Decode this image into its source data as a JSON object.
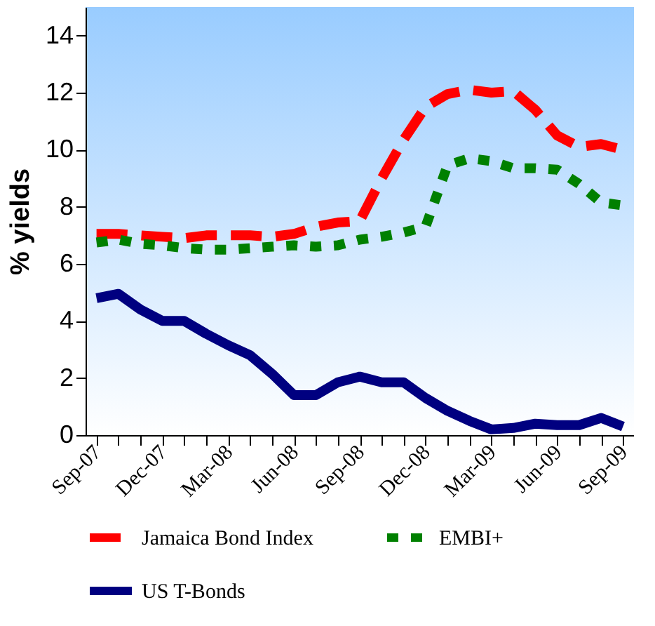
{
  "chart_data": {
    "type": "line",
    "ylabel": "% yields",
    "categories": [
      "Sep-07",
      null,
      null,
      "Dec-07",
      null,
      null,
      "Mar-08",
      null,
      null,
      "Jun-08",
      null,
      null,
      "Sep-08",
      null,
      null,
      "Dec-08",
      null,
      null,
      "Mar-09",
      null,
      null,
      "Jun-09",
      null,
      null,
      "Sep-09"
    ],
    "series": [
      {
        "name": "Jamaica Bond Index",
        "color": "#ff0000",
        "line_style": "dashed",
        "values": [
          7.05,
          7.05,
          7.0,
          6.95,
          6.9,
          7.0,
          7.0,
          7.0,
          6.95,
          7.05,
          7.3,
          7.45,
          7.5,
          9.0,
          10.35,
          11.5,
          11.95,
          12.1,
          12.0,
          12.05,
          11.4,
          10.5,
          10.1,
          10.2,
          10.0
        ]
      },
      {
        "name": "EMBI+",
        "color": "#008000",
        "line_style": "dotted",
        "values": [
          6.75,
          6.85,
          6.7,
          6.65,
          6.55,
          6.5,
          6.5,
          6.55,
          6.6,
          6.65,
          6.6,
          6.65,
          6.85,
          6.95,
          7.1,
          7.3,
          9.45,
          9.7,
          9.6,
          9.35,
          9.35,
          9.3,
          8.8,
          8.15,
          8.05
        ]
      },
      {
        "name": "US T-Bonds",
        "color": "#000080",
        "line_style": "solid",
        "values": [
          4.8,
          4.95,
          4.4,
          4.0,
          4.0,
          3.55,
          3.15,
          2.8,
          2.15,
          1.4,
          1.4,
          1.85,
          2.05,
          1.85,
          1.85,
          1.3,
          0.85,
          0.5,
          0.2,
          0.25,
          0.4,
          0.35,
          0.35,
          0.6,
          0.3
        ]
      }
    ],
    "ylim": [
      0,
      15
    ],
    "yticks": [
      0,
      2,
      4,
      6,
      8,
      10,
      12,
      14
    ],
    "grid": false,
    "legend": "bottom",
    "marker": "none"
  }
}
